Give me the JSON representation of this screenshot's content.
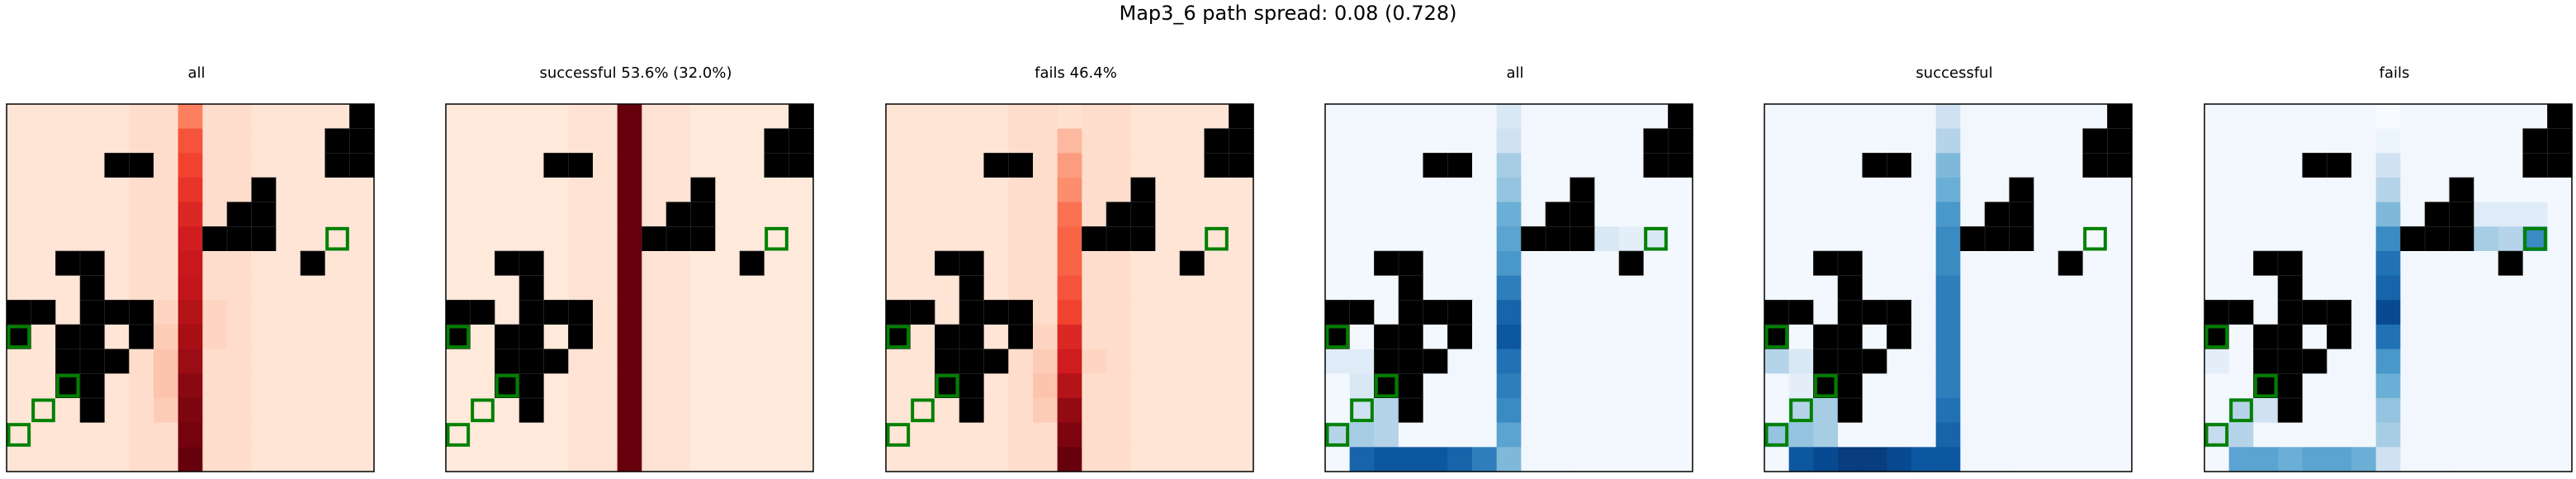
{
  "figure": {
    "suptitle": "Map3_6 path spread: 0.08 (0.728)"
  },
  "colors": {
    "obstacle": "#000000",
    "goal": "#008000",
    "cmap_reds": [
      "#fff5eb",
      "#fdd0a2",
      "#fdae6b",
      "#fd8d3c",
      "#f16913",
      "#d94801",
      "#a63603",
      "#7f2704"
    ],
    "cmap_reds_hot": [
      "#fff5eb",
      "#fcbba1",
      "#fc9272",
      "#fb6a4a",
      "#ef3b2c",
      "#cb181d",
      "#a50f15",
      "#67000d"
    ],
    "cmap_blues": [
      "#f7fbff",
      "#deebf7",
      "#c6dbef",
      "#9ecae1",
      "#6baed6",
      "#4292c6",
      "#2171b5",
      "#08519c",
      "#08306b"
    ]
  },
  "chart_data": {
    "type": "heatmap",
    "grid_size": [
      15,
      15
    ],
    "obstacles": [
      [
        0,
        14
      ],
      [
        1,
        13
      ],
      [
        1,
        14
      ],
      [
        2,
        13
      ],
      [
        2,
        14
      ],
      [
        2,
        4
      ],
      [
        2,
        5
      ],
      [
        3,
        10
      ],
      [
        4,
        9
      ],
      [
        4,
        10
      ],
      [
        5,
        8
      ],
      [
        5,
        9
      ],
      [
        5,
        10
      ],
      [
        6,
        12
      ],
      [
        6,
        2
      ],
      [
        6,
        3
      ],
      [
        7,
        3
      ],
      [
        8,
        0
      ],
      [
        8,
        1
      ],
      [
        8,
        3
      ],
      [
        8,
        4
      ],
      [
        8,
        5
      ],
      [
        9,
        0
      ],
      [
        9,
        2
      ],
      [
        9,
        3
      ],
      [
        9,
        5
      ],
      [
        10,
        2
      ],
      [
        10,
        3
      ],
      [
        10,
        4
      ],
      [
        11,
        2
      ],
      [
        11,
        3
      ],
      [
        12,
        3
      ]
    ],
    "goals": [
      [
        5,
        13
      ],
      [
        9,
        0
      ],
      [
        11,
        2
      ],
      [
        12,
        1
      ],
      [
        13,
        0
      ]
    ],
    "panels": [
      {
        "title": "all",
        "cmap": "reds",
        "path_column": 7,
        "column_values": [
          0.35,
          0.5,
          0.55,
          0.6,
          0.65,
          0.7,
          0.72,
          0.75,
          0.8,
          0.85,
          0.88,
          0.92,
          0.95,
          0.97,
          1.0
        ],
        "spread": [
          [
            8,
            6,
            0.08
          ],
          [
            9,
            6,
            0.1
          ],
          [
            10,
            6,
            0.12
          ],
          [
            11,
            6,
            0.12
          ],
          [
            12,
            6,
            0.1
          ],
          [
            8,
            8,
            0.08
          ],
          [
            9,
            8,
            0.08
          ]
        ],
        "background": 0.04
      },
      {
        "title": "successful 53.6% (32.0%)",
        "cmap": "reds",
        "path_column": 7,
        "column_values": [
          1,
          1,
          1,
          1,
          1,
          1,
          1,
          1,
          1,
          1,
          1,
          1,
          1,
          1,
          1
        ],
        "spread": [],
        "background": 0.03
      },
      {
        "title": "fails 46.4%",
        "cmap": "reds",
        "path_column": 7,
        "column_values": [
          0.05,
          0.15,
          0.25,
          0.3,
          0.4,
          0.45,
          0.45,
          0.5,
          0.55,
          0.65,
          0.7,
          0.8,
          0.9,
          0.95,
          1.0
        ],
        "spread": [
          [
            9,
            6,
            0.08
          ],
          [
            10,
            6,
            0.1
          ],
          [
            11,
            6,
            0.12
          ],
          [
            12,
            6,
            0.1
          ],
          [
            10,
            8,
            0.08
          ],
          [
            11,
            8,
            0.06
          ]
        ],
        "background": 0.04
      },
      {
        "title": "all",
        "cmap": "blues",
        "path_column": 7,
        "column_values": [
          0.15,
          0.2,
          0.35,
          0.4,
          0.5,
          0.55,
          0.6,
          0.7,
          0.8,
          0.85,
          0.75,
          0.7,
          0.65,
          0.55,
          0.45
        ],
        "spread": [
          [
            5,
            8,
            0.15
          ],
          [
            5,
            9,
            0.15
          ],
          [
            5,
            10,
            0.15
          ],
          [
            5,
            11,
            0.15
          ],
          [
            5,
            12,
            0.1
          ],
          [
            5,
            13,
            0.15
          ],
          [
            10,
            0,
            0.12
          ],
          [
            10,
            1,
            0.12
          ],
          [
            11,
            1,
            0.15
          ],
          [
            12,
            1,
            0.2
          ],
          [
            13,
            1,
            0.35
          ],
          [
            14,
            1,
            0.8
          ],
          [
            14,
            2,
            0.85
          ],
          [
            14,
            3,
            0.85
          ],
          [
            14,
            4,
            0.85
          ],
          [
            14,
            5,
            0.8
          ],
          [
            14,
            6,
            0.7
          ],
          [
            12,
            2,
            0.3
          ],
          [
            13,
            2,
            0.3
          ],
          [
            13,
            0,
            0.3
          ],
          [
            11,
            2,
            0.15
          ]
        ],
        "background": 0.02
      },
      {
        "title": "successful",
        "cmap": "blues",
        "path_column": 7,
        "column_values": [
          0.2,
          0.3,
          0.45,
          0.5,
          0.6,
          0.65,
          0.65,
          0.7,
          0.7,
          0.7,
          0.7,
          0.7,
          0.75,
          0.8,
          0.85
        ],
        "spread": [
          [
            10,
            0,
            0.3
          ],
          [
            10,
            1,
            0.15
          ],
          [
            11,
            1,
            0.1
          ],
          [
            12,
            1,
            0.3
          ],
          [
            13,
            1,
            0.4
          ],
          [
            14,
            1,
            0.85
          ],
          [
            14,
            2,
            0.9
          ],
          [
            14,
            3,
            0.95
          ],
          [
            14,
            4,
            0.95
          ],
          [
            14,
            5,
            0.9
          ],
          [
            14,
            6,
            0.85
          ],
          [
            13,
            0,
            0.4
          ],
          [
            12,
            2,
            0.35
          ],
          [
            13,
            2,
            0.35
          ]
        ],
        "background": 0.02
      },
      {
        "title": "fails",
        "cmap": "blues",
        "path_column": 7,
        "column_values": [
          0.0,
          0.05,
          0.2,
          0.3,
          0.45,
          0.65,
          0.75,
          0.8,
          0.9,
          0.75,
          0.6,
          0.5,
          0.4,
          0.35,
          0.2
        ],
        "spread": [
          [
            5,
            8,
            0.45
          ],
          [
            5,
            9,
            0.4
          ],
          [
            5,
            10,
            0.4
          ],
          [
            5,
            11,
            0.35
          ],
          [
            5,
            12,
            0.3
          ],
          [
            5,
            13,
            0.65
          ],
          [
            4,
            11,
            0.12
          ],
          [
            4,
            12,
            0.12
          ],
          [
            4,
            13,
            0.12
          ],
          [
            14,
            1,
            0.55
          ],
          [
            14,
            2,
            0.55
          ],
          [
            14,
            3,
            0.5
          ],
          [
            14,
            4,
            0.55
          ],
          [
            14,
            5,
            0.55
          ],
          [
            14,
            6,
            0.5
          ],
          [
            12,
            1,
            0.3
          ],
          [
            13,
            1,
            0.3
          ],
          [
            10,
            0,
            0.1
          ],
          [
            12,
            2,
            0.2
          ],
          [
            13,
            0,
            0.25
          ]
        ],
        "background": 0.02
      }
    ]
  }
}
